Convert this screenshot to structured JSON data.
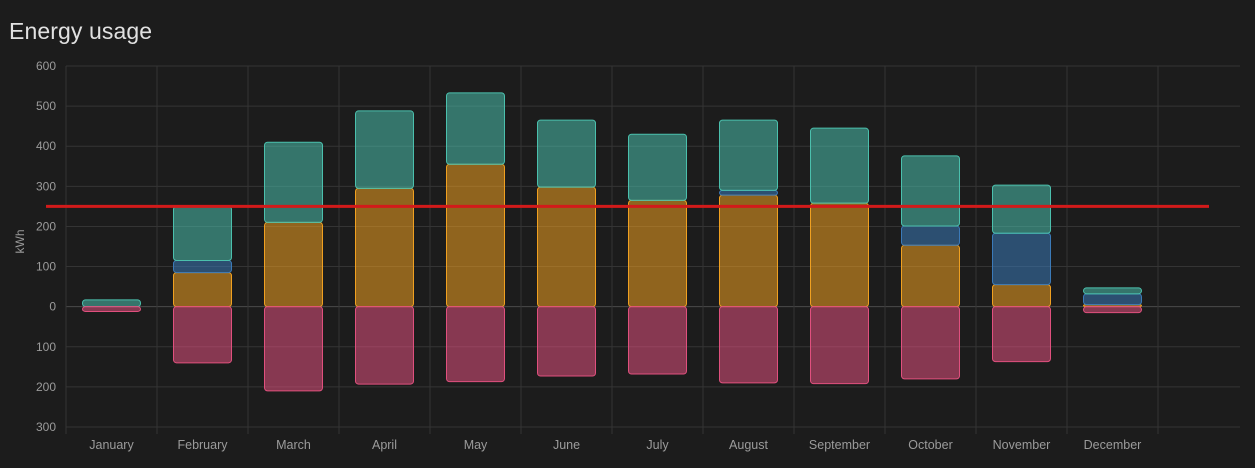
{
  "card": {
    "title": "Energy usage"
  },
  "chart_data": {
    "type": "bar",
    "stacked": true,
    "title": "Energy usage",
    "xlabel": "",
    "ylabel": "kWh",
    "ylim": [
      -300,
      600
    ],
    "y_ticks": [
      600,
      500,
      400,
      300,
      200,
      100,
      0,
      -100,
      -200,
      -300
    ],
    "y_tick_labels": [
      "600",
      "500",
      "400",
      "300",
      "200",
      "100",
      "0",
      "100",
      "200",
      "300"
    ],
    "categories": [
      "January",
      "February",
      "March",
      "April",
      "May",
      "June",
      "July",
      "August",
      "September",
      "October",
      "November",
      "December"
    ],
    "series": [
      {
        "color": "#f0a020",
        "values": [
          0,
          85,
          210,
          295,
          355,
          298,
          265,
          278,
          258,
          153,
          55,
          5
        ]
      },
      {
        "color": "#3b7ab8",
        "values": [
          0,
          30,
          0,
          0,
          0,
          0,
          0,
          12,
          0,
          48,
          128,
          27
        ]
      },
      {
        "color": "#4bc0ad",
        "values": [
          17,
          135,
          200,
          193,
          178,
          167,
          165,
          175,
          187,
          175,
          120,
          15
        ]
      },
      {
        "color": "#e0507e",
        "values": [
          -12,
          -140,
          -210,
          -193,
          -187,
          -173,
          -168,
          -190,
          -192,
          -180,
          -137,
          -15
        ]
      }
    ],
    "reference_line": {
      "value": 250,
      "color": "#d21a1a"
    },
    "grid": true,
    "legend": "none"
  }
}
